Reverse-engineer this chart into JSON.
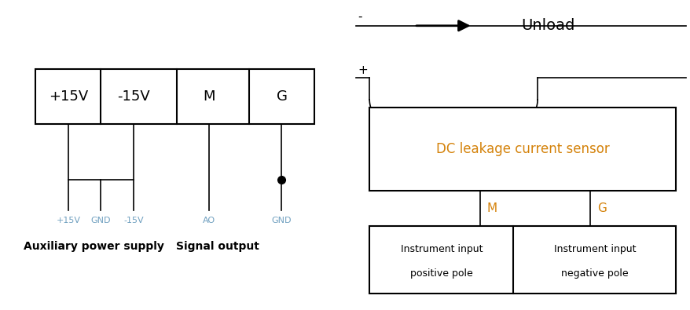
{
  "fig_width": 8.79,
  "fig_height": 3.95,
  "bg_color": "#ffffff",
  "line_color": "#000000",
  "orange_color": "#d4820a",
  "wire_label_color": "#70a0c0",
  "left_panel": {
    "terminals": [
      "+15V",
      "-15V",
      "M",
      "G"
    ],
    "aux_label": "Auxiliary power supply",
    "sig_label": "Signal output",
    "wire_labels": [
      "+15V",
      "GND",
      "-15V",
      "AO",
      "GND"
    ]
  },
  "right_panel": {
    "sensor_text": "DC leakage current sensor",
    "unload_text": "Unload",
    "minus_label": "-",
    "plus_label": "+",
    "m_label": "M",
    "g_label": "G",
    "inst_pos_text1": "Instrument input",
    "inst_pos_text2": "positive pole",
    "inst_neg_text1": "Instrument input",
    "inst_neg_text2": "negative pole"
  }
}
